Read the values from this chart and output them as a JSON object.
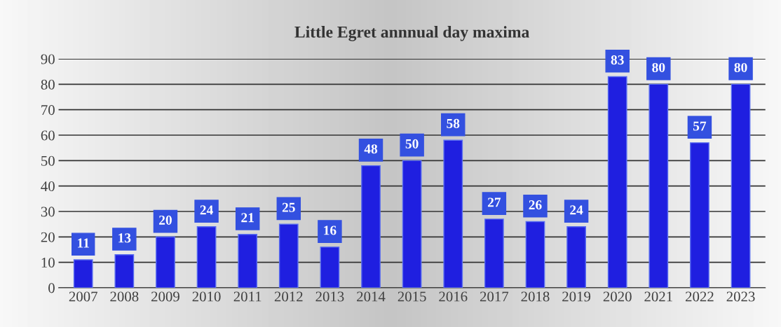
{
  "chart_data": {
    "type": "bar",
    "title": "Little Egret annnual day maxima",
    "categories": [
      "2007",
      "2008",
      "2009",
      "2010",
      "2011",
      "2012",
      "2013",
      "2014",
      "2015",
      "2016",
      "2017",
      "2018",
      "2019",
      "2020",
      "2021",
      "2022",
      "2023"
    ],
    "values": [
      11,
      13,
      20,
      24,
      21,
      25,
      16,
      48,
      50,
      58,
      27,
      26,
      24,
      83,
      80,
      57,
      80
    ],
    "color": "#1f1fe0",
    "ylim": [
      0,
      90
    ],
    "yticks": [
      0,
      10,
      20,
      30,
      40,
      50,
      60,
      70,
      80,
      90
    ],
    "grid": "y",
    "data_labels": true
  }
}
